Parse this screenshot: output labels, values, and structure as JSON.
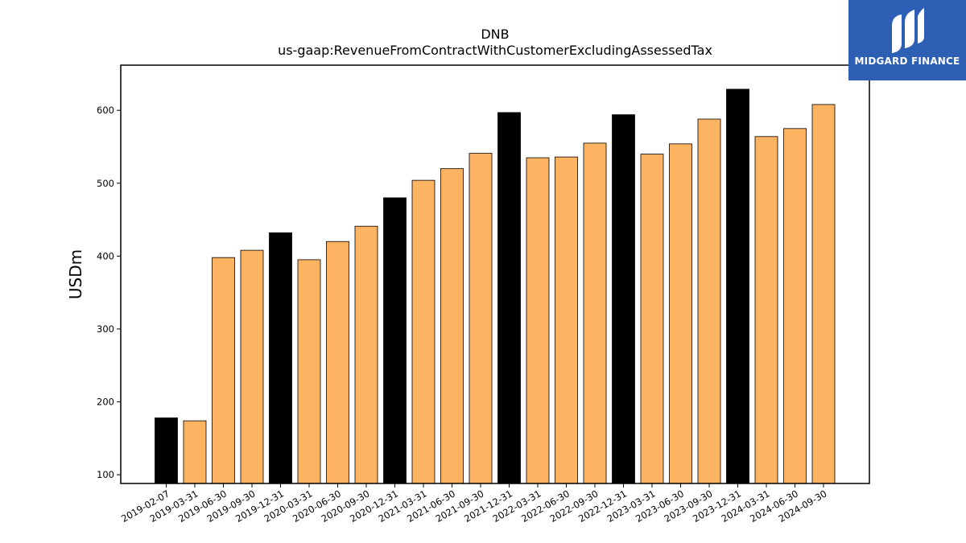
{
  "chart_data": {
    "type": "bar",
    "title": "DNB",
    "subtitle": "us-gaap:RevenueFromContractWithCustomerExcludingAssessedTax",
    "xlabel": "",
    "ylabel": "USDm",
    "ylim": [
      88,
      662
    ],
    "yticks": [
      100,
      200,
      300,
      400,
      500,
      600
    ],
    "categories": [
      "2019-02-07",
      "2019-03-31",
      "2019-06-30",
      "2019-09-30",
      "2019-12-31",
      "2020-03-31",
      "2020-06-30",
      "2020-09-30",
      "2020-12-31",
      "2021-03-31",
      "2021-06-30",
      "2021-09-30",
      "2021-12-31",
      "2022-03-31",
      "2022-06-30",
      "2022-09-30",
      "2022-12-31",
      "2023-03-31",
      "2023-06-30",
      "2023-09-30",
      "2023-12-31",
      "2024-03-31",
      "2024-06-30",
      "2024-09-30"
    ],
    "values": [
      178,
      174,
      398,
      408,
      432,
      395,
      420,
      441,
      480,
      504,
      520,
      541,
      597,
      535,
      536,
      555,
      594,
      540,
      554,
      588,
      629,
      564,
      575,
      608
    ],
    "highlight": [
      true,
      false,
      false,
      false,
      true,
      false,
      false,
      false,
      true,
      false,
      false,
      false,
      true,
      false,
      false,
      false,
      true,
      false,
      false,
      false,
      true,
      false,
      false,
      false
    ],
    "colors": {
      "default": "#fdb462",
      "highlight": "#000000",
      "edge": "#000000"
    },
    "grid": false,
    "legend": "none"
  },
  "branding": {
    "logo_text": "MIDGARD FINANCE",
    "logo_bg": "#2d5fb4"
  }
}
